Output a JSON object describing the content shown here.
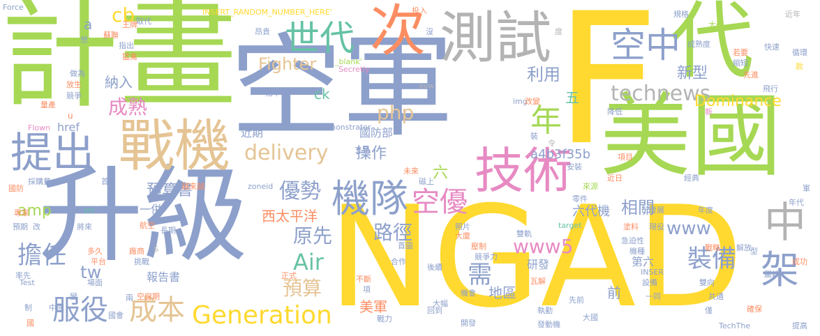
{
  "words": [
    {
      "text": "空軍",
      "color": "#8da0cb"
    },
    {
      "text": "NGAD",
      "color": "#ffd92f"
    },
    {
      "text": "計畫",
      "color": "#a6d854"
    },
    {
      "text": "升級",
      "color": "#8da0cb"
    },
    {
      "text": "F",
      "color": "#ffd92f"
    },
    {
      "text": "美國",
      "color": "#a6d854"
    },
    {
      "text": "代",
      "color": "#a6d854"
    },
    {
      "text": "戰機",
      "color": "#e5c494"
    },
    {
      "text": "技術",
      "color": "#e78ac3"
    },
    {
      "text": "測試",
      "color": "#b3b3b3"
    },
    {
      "text": "次",
      "color": "#fc8d62"
    },
    {
      "text": "提出",
      "color": "#8da0cb"
    },
    {
      "text": "機隊",
      "color": "#8da0cb"
    },
    {
      "text": "世代",
      "color": "#66c2a5"
    },
    {
      "text": "空中",
      "color": "#8da0cb"
    },
    {
      "text": "中",
      "color": "#b3b3b3"
    },
    {
      "text": "架",
      "color": "#8da0cb"
    },
    {
      "text": "Generation",
      "color": "#ffd92f"
    },
    {
      "text": "服役",
      "color": "#8da0cb"
    },
    {
      "text": "成本",
      "color": "#e5c494"
    },
    {
      "text": "年",
      "color": "#a6d854"
    },
    {
      "text": "空優",
      "color": "#e78ac3"
    },
    {
      "text": "technews",
      "color": "#b3b3b3"
    },
    {
      "text": "裝備",
      "color": "#8da0cb"
    },
    {
      "text": "delivery",
      "color": "#e5c494"
    },
    {
      "text": "Air",
      "color": "#66c2a5"
    },
    {
      "text": "擔任",
      "color": "#8da0cb"
    },
    {
      "text": "優勢",
      "color": "#8da0cb"
    },
    {
      "text": "需",
      "color": "#8da0cb"
    },
    {
      "text": "路徑",
      "color": "#8da0cb"
    },
    {
      "text": "原先",
      "color": "#8da0cb"
    },
    {
      "text": "預算",
      "color": "#e5c494"
    },
    {
      "text": "www5",
      "color": "#e78ac3"
    },
    {
      "text": "www",
      "color": "#8da0cb"
    },
    {
      "text": "Dominance",
      "color": "#ffd92f"
    },
    {
      "text": "成熟",
      "color": "#e78ac3"
    },
    {
      "text": "Fighter",
      "color": "#e5c494"
    },
    {
      "text": "php",
      "color": "#e5c494"
    },
    {
      "text": "cb",
      "color": "#ffd92f"
    },
    {
      "text": "tw",
      "color": "#8da0cb"
    },
    {
      "text": "amp",
      "color": "#a6d854"
    },
    {
      "text": "利用",
      "color": "#8da0cb"
    },
    {
      "text": "新型",
      "color": "#8da0cb"
    },
    {
      "text": "相關",
      "color": "#8da0cb"
    },
    {
      "text": "操作",
      "color": "#8da0cb"
    },
    {
      "text": "預算書",
      "color": "#8da0cb"
    },
    {
      "text": "西太平洋",
      "color": "#fc8d62"
    },
    {
      "text": "地區",
      "color": "#8da0cb"
    },
    {
      "text": "美軍",
      "color": "#fc8d62"
    },
    {
      "text": "納入",
      "color": "#8da0cb"
    },
    {
      "text": "a4b3f35b",
      "color": "#8da0cb"
    },
    {
      "text": "國防部",
      "color": "#8da0cb"
    },
    {
      "text": "六代機",
      "color": "#8da0cb"
    },
    {
      "text": "研發",
      "color": "#8da0cb"
    },
    {
      "text": "報告書",
      "color": "#8da0cb"
    },
    {
      "text": "一併",
      "color": "#8da0cb"
    },
    {
      "text": "近期",
      "color": "#8da0cb"
    },
    {
      "text": "前",
      "color": "#8da0cb"
    },
    {
      "text": "第六",
      "color": "#8da0cb"
    },
    {
      "text": "六",
      "color": "#a6d854"
    },
    {
      "text": "五",
      "color": "#66c2a5"
    },
    {
      "text": "ck",
      "color": "#66c2a5"
    },
    {
      "text": "a",
      "color": "#8da0cb"
    },
    {
      "text": "href",
      "color": "#8da0cb"
    },
    {
      "text": "n",
      "color": "#8da0cb"
    },
    {
      "text": "Demonstrator",
      "color": "#8da0cb"
    },
    {
      "text": "Secretly",
      "color": "#e78ac3"
    },
    {
      "text": "_blank'",
      "color": "#a6d854"
    },
    {
      "text": "INSERT_RANDOM_NUMBER_HERE'",
      "color": "#ffd92f"
    },
    {
      "text": "Force",
      "color": "#8da0cb"
    },
    {
      "text": "Flown",
      "color": "#e78ac3"
    },
    {
      "text": "Test",
      "color": "#8da0cb"
    },
    {
      "text": "TechThe",
      "color": "#8da0cb"
    },
    {
      "text": "INSER",
      "color": "#8da0cb"
    },
    {
      "text": "zoneid",
      "color": "#8da0cb"
    },
    {
      "text": "src",
      "color": "#66c2a5"
    },
    {
      "text": "target",
      "color": "#66c2a5"
    },
    {
      "text": "img",
      "color": "#8da0cb"
    },
    {
      "text": "avw",
      "color": "#b3b3b3"
    },
    {
      "text": "u",
      "color": "#fc8d62"
    },
    {
      "text": "S",
      "color": "#b3b3b3"
    },
    {
      "text": "取代",
      "color": "#8da0cb"
    },
    {
      "text": "王牌",
      "color": "#fc8d62"
    },
    {
      "text": "蘇聯",
      "color": "#fc8d62"
    },
    {
      "text": "想",
      "color": "#8da0cb"
    },
    {
      "text": "指出",
      "color": "#8da0cb"
    },
    {
      "text": "猛禽",
      "color": "#fc8d62"
    },
    {
      "text": "做為",
      "color": "#8da0cb"
    },
    {
      "text": "放生",
      "color": "#fc8d62"
    },
    {
      "text": "競爭",
      "color": "#8da0cb"
    },
    {
      "text": "量產",
      "color": "#fc8d62"
    },
    {
      "text": "昂貴",
      "color": "#8da0cb"
    },
    {
      "text": "投入",
      "color": "#fc8d62"
    },
    {
      "text": "沒",
      "color": "#8da0cb"
    },
    {
      "text": "度",
      "color": "#b3b3b3"
    },
    {
      "text": "規格",
      "color": "#8da0cb"
    },
    {
      "text": "大砍",
      "color": "#a6d854"
    },
    {
      "text": "成熟度",
      "color": "#8da0cb"
    },
    {
      "text": "若要",
      "color": "#fc8d62"
    },
    {
      "text": "縮短",
      "color": "#8da0cb"
    },
    {
      "text": "快速",
      "color": "#8da0cb"
    },
    {
      "text": "循環",
      "color": "#8da0cb"
    },
    {
      "text": "款",
      "color": "#ffd92f"
    },
    {
      "text": "先進",
      "color": "#fc8d62"
    },
    {
      "text": "飛行",
      "color": "#8da0cb"
    },
    {
      "text": "降低",
      "color": "#8da0cb"
    },
    {
      "text": "近年",
      "color": "#b3b3b3"
    },
    {
      "text": "新",
      "color": "#e78ac3"
    },
    {
      "text": "抬下",
      "color": "#8da0cb"
    },
    {
      "text": "改變",
      "color": "#fc8d62"
    },
    {
      "text": "裝",
      "color": "#8da0cb"
    },
    {
      "text": "令",
      "color": "#b3b3b3"
    },
    {
      "text": "五角",
      "color": "#8da0cb"
    },
    {
      "text": "未來",
      "color": "#fc8d62"
    },
    {
      "text": "磁上",
      "color": "#8da0cb"
    },
    {
      "text": "安裝",
      "color": "#8da0cb"
    },
    {
      "text": "項目",
      "color": "#fc8d62"
    },
    {
      "text": "近日",
      "color": "#fc8d62"
    },
    {
      "text": "經典",
      "color": "#8da0cb"
    },
    {
      "text": "來源",
      "color": "#a6d854"
    },
    {
      "text": "零件",
      "color": "#8da0cb"
    },
    {
      "text": "發展",
      "color": "#8da0cb"
    },
    {
      "text": "年度",
      "color": "#8da0cb"
    },
    {
      "text": "年代",
      "color": "#8da0cb"
    },
    {
      "text": "軍",
      "color": "#8da0cb"
    },
    {
      "text": "國防",
      "color": "#fc8d62"
    },
    {
      "text": "採購量",
      "color": "#8da0cb"
    },
    {
      "text": "首",
      "color": "#8da0cb"
    },
    {
      "text": "越來越",
      "color": "#fc8d62"
    },
    {
      "text": "專家",
      "color": "#fc8d62"
    },
    {
      "text": "資金",
      "color": "#8da0cb"
    },
    {
      "text": "預期",
      "color": "#8da0cb"
    },
    {
      "text": "改",
      "color": "#8da0cb"
    },
    {
      "text": "將來",
      "color": "#8da0cb"
    },
    {
      "text": "航空",
      "color": "#fc8d62"
    },
    {
      "text": "長期",
      "color": "#8da0cb"
    },
    {
      "text": "照片",
      "color": "#8da0cb"
    },
    {
      "text": "大廈",
      "color": "#fc8d62"
    },
    {
      "text": "雙軌",
      "color": "#8da0cb"
    },
    {
      "text": "塗料",
      "color": "#fc8d62"
    },
    {
      "text": "現役",
      "color": "#8da0cb"
    },
    {
      "text": "首圖",
      "color": "#8da0cb"
    },
    {
      "text": "壓制",
      "color": "#fc8d62"
    },
    {
      "text": "急迫性",
      "color": "#8da0cb"
    },
    {
      "text": "機種",
      "color": "#8da0cb"
    },
    {
      "text": "戰略",
      "color": "#fc8d62"
    },
    {
      "text": "解放",
      "color": "#8da0cb"
    },
    {
      "text": "型",
      "color": "#8da0cb"
    },
    {
      "text": "多久",
      "color": "#fc8d62"
    },
    {
      "text": "平台",
      "color": "#fc8d62"
    },
    {
      "text": "挑戰",
      "color": "#8da0cb"
    },
    {
      "text": "廠商",
      "color": "#fc8d62"
    },
    {
      "text": "競爭力",
      "color": "#8da0cb"
    },
    {
      "text": "後續",
      "color": "#8da0cb"
    },
    {
      "text": "合作",
      "color": "#8da0cb"
    },
    {
      "text": "嚴峻",
      "color": "#8da0cb"
    },
    {
      "text": "成功",
      "color": "#fc8d62"
    },
    {
      "text": "率先",
      "color": "#8da0cb"
    },
    {
      "text": "場面",
      "color": "#8da0cb"
    },
    {
      "text": "變",
      "color": "#8da0cb"
    },
    {
      "text": "空窗期",
      "color": "#fc8d62"
    },
    {
      "text": "兩",
      "color": "#8da0cb"
    },
    {
      "text": "正式",
      "color": "#fc8d62"
    },
    {
      "text": "不斷",
      "color": "#fc8d62"
    },
    {
      "text": "項",
      "color": "#8da0cb"
    },
    {
      "text": "瓦解",
      "color": "#fc8d62"
    },
    {
      "text": "機會",
      "color": "#8da0cb"
    },
    {
      "text": "設備",
      "color": "#8da0cb"
    },
    {
      "text": "雙向",
      "color": "#8da0cb"
    },
    {
      "text": "制",
      "color": "#8da0cb"
    },
    {
      "text": "中國",
      "color": "#8da0cb"
    },
    {
      "text": "國會",
      "color": "#8da0cb"
    },
    {
      "text": "大幅",
      "color": "#8da0cb"
    },
    {
      "text": "回到",
      "color": "#8da0cb"
    },
    {
      "text": "執勤",
      "color": "#8da0cb"
    },
    {
      "text": "先前",
      "color": "#8da0cb"
    },
    {
      "text": "一同",
      "color": "#8da0cb"
    },
    {
      "text": "共通",
      "color": "#8da0cb"
    },
    {
      "text": "僅",
      "color": "#8da0cb"
    },
    {
      "text": "確保",
      "color": "#fc8d62"
    },
    {
      "text": "國",
      "color": "#fc8d62"
    },
    {
      "text": "戰力",
      "color": "#8da0cb"
    },
    {
      "text": "開發",
      "color": "#8da0cb"
    },
    {
      "text": "發動機",
      "color": "#8da0cb"
    },
    {
      "text": "大國",
      "color": "#8da0cb"
    },
    {
      "text": "提高",
      "color": "#8da0cb"
    },
    {
      "text": "近",
      "color": "#8da0cb"
    }
  ]
}
